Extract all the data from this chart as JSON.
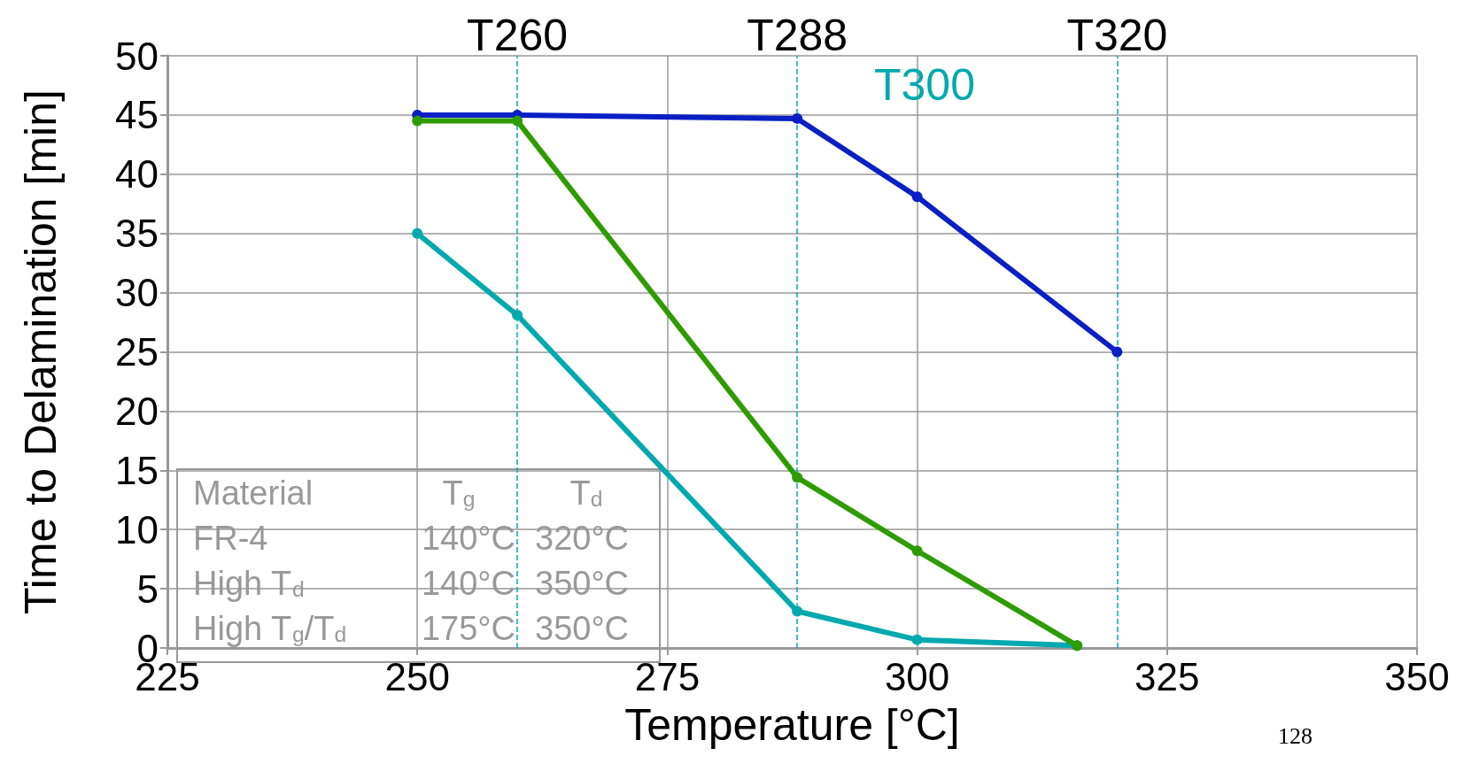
{
  "chart_data": {
    "type": "line",
    "xlabel": "Temperature [°C]",
    "ylabel": "Time to Delamination [min]",
    "series": [
      {
        "color": "#00a9ae",
        "x": [
          250,
          260,
          288,
          300,
          316
        ],
        "values": [
          35,
          28.1,
          3.1,
          0.7,
          0.2
        ]
      },
      {
        "color": "#2e9c00",
        "x": [
          250,
          260,
          288,
          300,
          316
        ],
        "values": [
          44.5,
          44.5,
          14.4,
          8.2,
          0.2
        ]
      },
      {
        "color": "#0a1fc4",
        "x": [
          250,
          260,
          288,
          300,
          320
        ],
        "values": [
          45,
          45,
          44.7,
          38.1,
          25
        ]
      }
    ],
    "xlim": [
      225,
      350
    ],
    "xticks": [
      225,
      250,
      275,
      300,
      325,
      350
    ],
    "ylim": [
      0,
      50
    ],
    "yticks": [
      0,
      5,
      10,
      15,
      20,
      25,
      30,
      35,
      40,
      45,
      50
    ],
    "grid": true,
    "marker": "circle",
    "line_style": "solid",
    "ref_lines": [
      {
        "axis": "x",
        "value": 260,
        "label": "T260",
        "color": "#00a9ae",
        "line_style": "dashed"
      },
      {
        "axis": "x",
        "value": 288,
        "label": "T288",
        "color": "#00a9ae",
        "line_style": "dashed"
      },
      {
        "axis": "x",
        "value": 320,
        "label": "T320",
        "color": "#00a9ae",
        "line_style": "dashed"
      }
    ],
    "annotations": [
      "T300",
      "Material",
      "T$_{g}$",
      "T$_{d}$",
      "FR-4",
      "140°C",
      "320°C",
      "High T$_{d}$",
      "140°C",
      "350°C",
      "High T$_{g}$/T$_{d}$",
      "175°C",
      "350°C",
      "128"
    ]
  }
}
